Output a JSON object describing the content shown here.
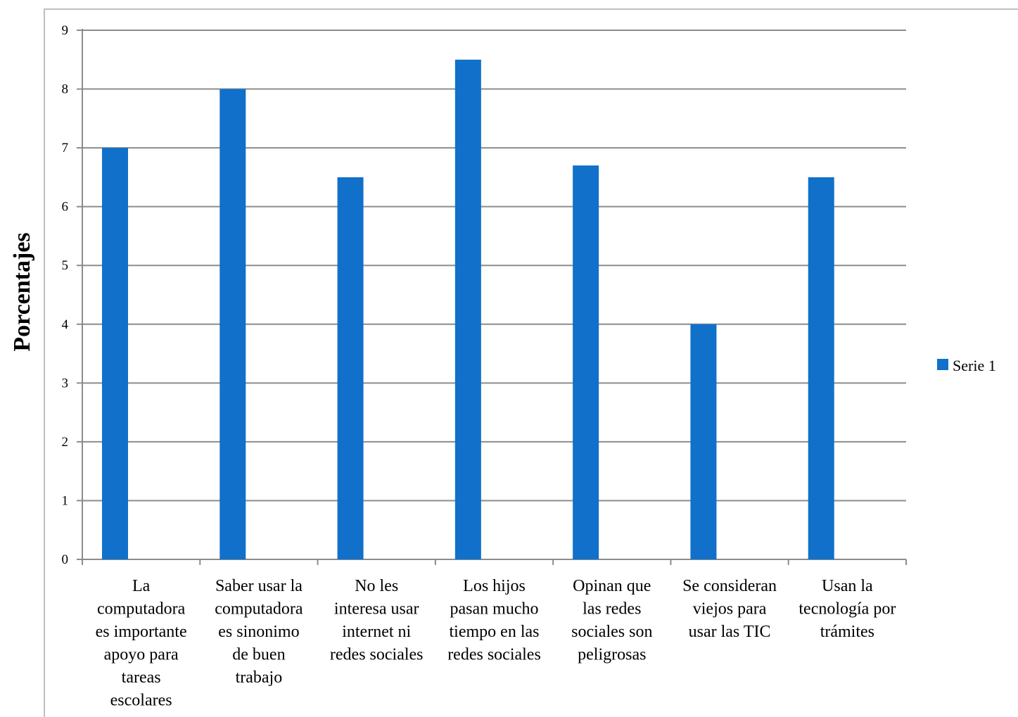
{
  "chart_data": {
    "type": "bar",
    "title": "",
    "xlabel": "",
    "ylabel": "Porcentajes",
    "ylim": [
      0,
      9
    ],
    "yticks": [
      "0",
      "1",
      "2",
      "3",
      "4",
      "5",
      "6",
      "7",
      "8",
      "9"
    ],
    "grid": true,
    "legend_position": "right",
    "categories": [
      [
        "La",
        "computadora",
        "es importante",
        "apoyo para",
        "tareas",
        "escolares"
      ],
      [
        "Saber usar  la",
        "computadora",
        "es sinonimo",
        "de buen",
        "trabajo"
      ],
      [
        "No les",
        "interesa usar",
        "internet ni",
        "redes sociales"
      ],
      [
        "Los hijos",
        "pasan mucho",
        "tiempo en las",
        "redes sociales"
      ],
      [
        "Opinan que",
        "las redes",
        "sociales son",
        "peligrosas"
      ],
      [
        "Se consideran",
        "viejos para",
        "usar las TIC"
      ],
      [
        "Usan la",
        "tecnología por",
        "trámites"
      ]
    ],
    "series": [
      {
        "name": "Serie 1",
        "color": "#1170c9",
        "values": [
          7.0,
          8.0,
          6.5,
          8.5,
          6.7,
          4.0,
          6.5
        ]
      }
    ]
  }
}
